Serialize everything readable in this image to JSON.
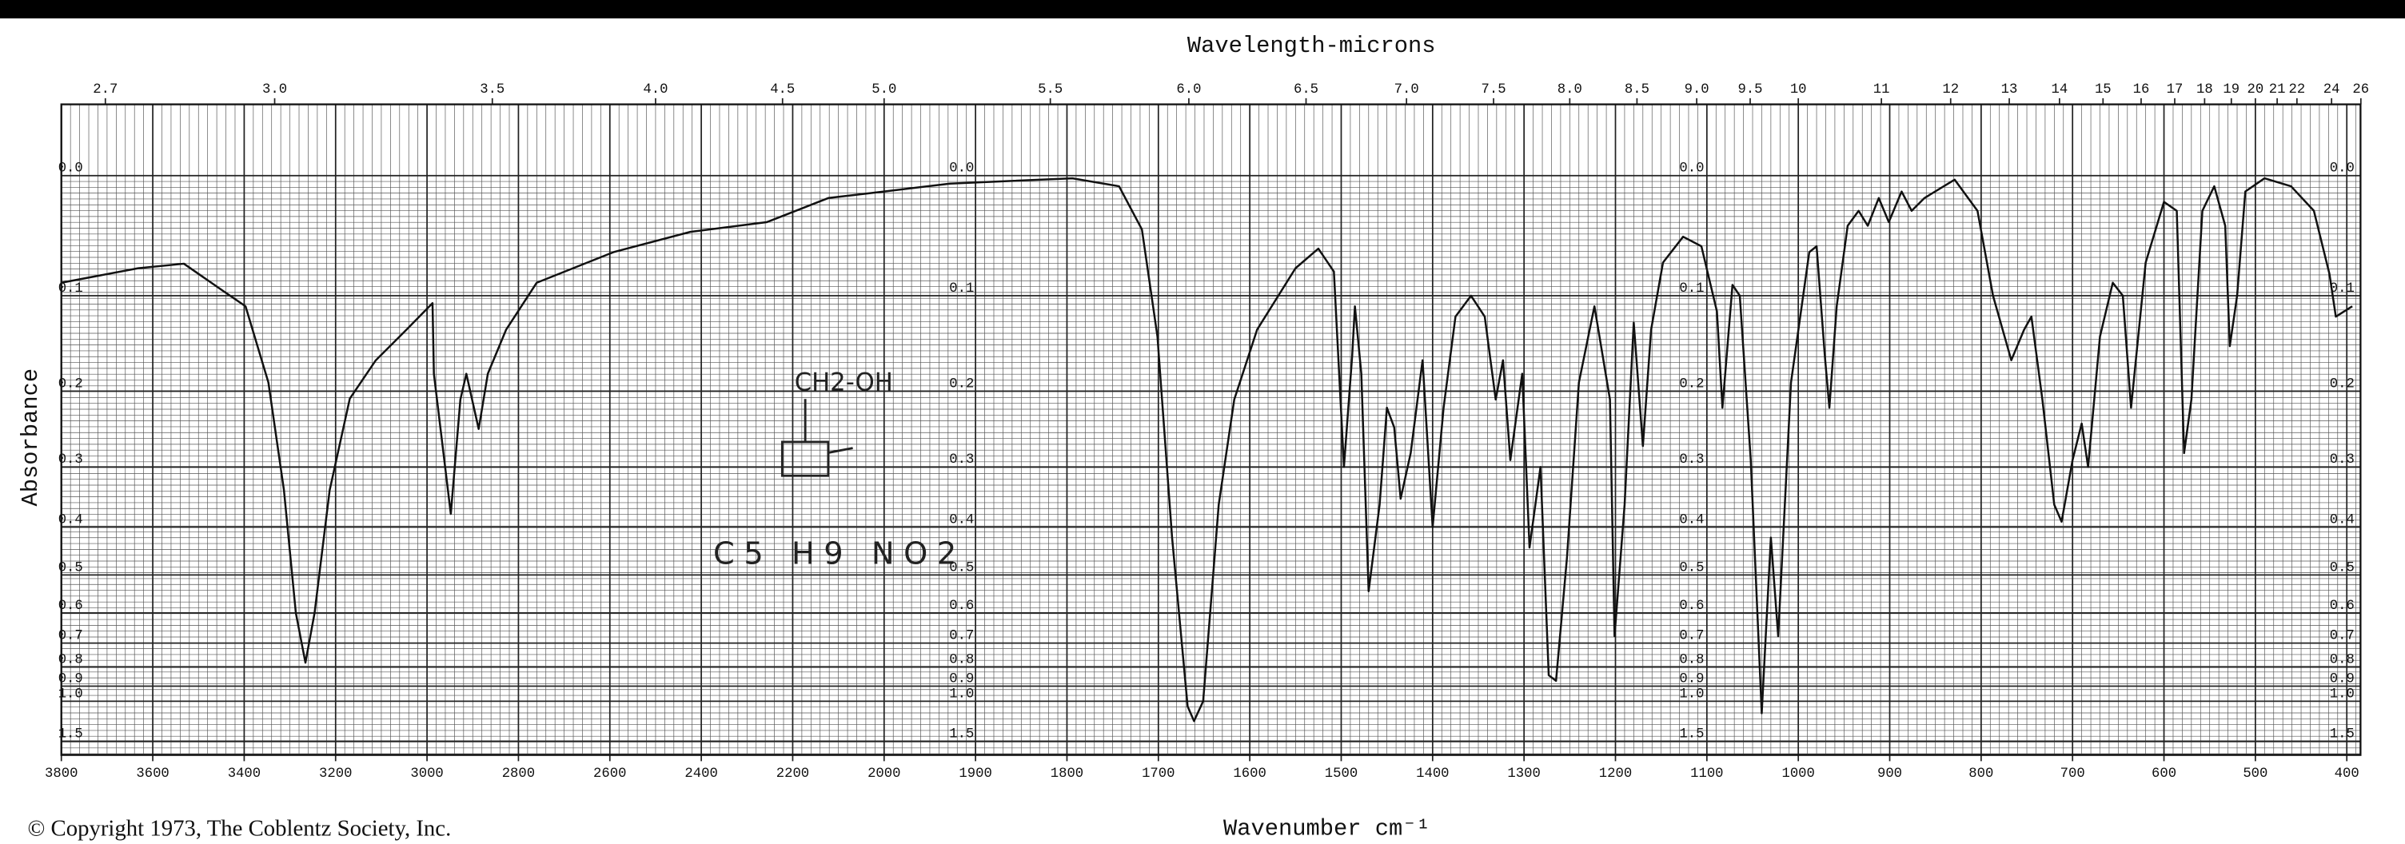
{
  "chart_data": {
    "type": "line",
    "title": "Wavelength-microns",
    "x_label": "Wavenumber cm⁻¹",
    "y_label": "Absorbance",
    "copyright": "© Copyright 1973, The Coblentz Society, Inc.",
    "annotations": [
      "CH2-OH",
      "C5 H9 NO2"
    ],
    "color": "#111111",
    "grid": true,
    "y_scale": "transmittance",
    "x_scale_break": 2000,
    "xlim": [
      3800,
      385
    ],
    "ylim": [
      -0.05,
      2.1
    ],
    "xticks": [
      3800,
      3600,
      3400,
      3200,
      3000,
      2800,
      2600,
      2400,
      2200,
      2000,
      1900,
      1800,
      1700,
      1600,
      1500,
      1400,
      1300,
      1200,
      1100,
      1000,
      900,
      800,
      700,
      600,
      500,
      400
    ],
    "x2ticks": [
      2.7,
      {
        "value": 3,
        "label": "3.0"
      },
      3.5,
      {
        "value": 4,
        "label": "4.0"
      },
      4.5,
      {
        "value": 5,
        "label": "5.0"
      },
      5.5,
      {
        "value": 6,
        "label": "6.0"
      },
      6.5,
      {
        "value": 7,
        "label": "7.0"
      },
      7.5,
      {
        "value": 8,
        "label": "8.0"
      },
      8.5,
      {
        "value": 9,
        "label": "9.0"
      },
      9.5,
      10,
      11,
      12,
      13,
      14,
      15,
      16,
      17,
      18,
      19,
      20,
      21,
      22,
      24,
      26
    ],
    "yticks": [
      {
        "value": 0,
        "label": "0.0"
      },
      0.1,
      0.2,
      0.3,
      0.4,
      0.5,
      0.6,
      0.7,
      0.8,
      0.9,
      {
        "value": 1,
        "label": "1.0"
      },
      1.5
    ],
    "x": [
      3800,
      3632,
      3532,
      3448,
      3397,
      3347,
      3313,
      3287,
      3266,
      3246,
      3213,
      3169,
      3112,
      3045,
      2988,
      2985,
      2948,
      2927,
      2914,
      2887,
      2867,
      2827,
      2760,
      2592,
      2424,
      2256,
      2122,
      2000,
      1928,
      1794,
      1743,
      1718,
      1701,
      1685,
      1668,
      1661,
      1651,
      1634,
      1617,
      1592,
      1550,
      1525,
      1508,
      1497,
      1488,
      1485,
      1478,
      1470,
      1458,
      1450,
      1442,
      1435,
      1424,
      1411,
      1400,
      1388,
      1375,
      1358,
      1343,
      1331,
      1323,
      1315,
      1302,
      1294,
      1282,
      1273,
      1265,
      1253,
      1240,
      1223,
      1206,
      1201,
      1190,
      1180,
      1170,
      1161,
      1148,
      1126,
      1106,
      1089,
      1083,
      1072,
      1064,
      1052,
      1040,
      1030,
      1022,
      1008,
      988,
      980,
      971,
      966,
      958,
      946,
      934,
      924,
      912,
      901,
      887,
      876,
      862,
      829,
      804,
      787,
      767,
      753,
      745,
      733,
      720,
      712,
      700,
      690,
      683,
      670,
      656,
      645,
      636,
      620,
      600,
      586,
      578,
      570,
      558,
      545,
      533,
      528,
      520,
      511,
      490,
      461,
      436,
      419,
      412,
      394
    ],
    "values": [
      0.088,
      0.075,
      0.071,
      0.095,
      0.11,
      0.19,
      0.336,
      0.6,
      0.78,
      0.6,
      0.336,
      0.209,
      0.165,
      0.133,
      0.107,
      0.18,
      0.376,
      0.21,
      0.18,
      0.247,
      0.18,
      0.133,
      0.088,
      0.061,
      0.044,
      0.036,
      0.017,
      0.012,
      0.006,
      0.002,
      0.008,
      0.042,
      0.14,
      0.42,
      1.04,
      1.18,
      1.0,
      0.36,
      0.21,
      0.133,
      0.075,
      0.058,
      0.078,
      0.3,
      0.16,
      0.11,
      0.18,
      0.54,
      0.36,
      0.22,
      0.245,
      0.35,
      0.28,
      0.165,
      0.4,
      0.22,
      0.12,
      0.1,
      0.12,
      0.21,
      0.165,
      0.29,
      0.18,
      0.44,
      0.3,
      0.84,
      0.87,
      0.46,
      0.19,
      0.11,
      0.21,
      0.675,
      0.36,
      0.126,
      0.27,
      0.133,
      0.07,
      0.048,
      0.056,
      0.115,
      0.22,
      0.09,
      0.1,
      0.29,
      1.1,
      0.42,
      0.675,
      0.19,
      0.061,
      0.056,
      0.16,
      0.22,
      0.11,
      0.039,
      0.027,
      0.039,
      0.017,
      0.036,
      0.012,
      0.027,
      0.017,
      0.003,
      0.027,
      0.1,
      0.165,
      0.133,
      0.12,
      0.21,
      0.36,
      0.39,
      0.29,
      0.24,
      0.3,
      0.14,
      0.088,
      0.1,
      0.22,
      0.07,
      0.02,
      0.027,
      0.28,
      0.21,
      0.027,
      0.008,
      0.039,
      0.15,
      0.1,
      0.012,
      0.002,
      0.008,
      0.027,
      0.08,
      0.12,
      0.11
    ]
  }
}
